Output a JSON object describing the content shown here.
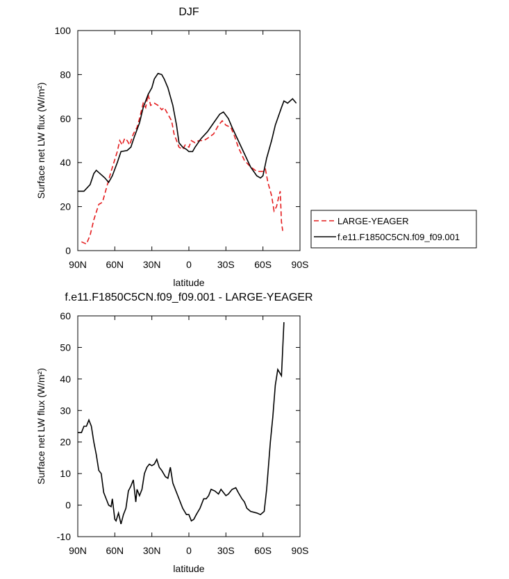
{
  "chart_data": [
    {
      "type": "line",
      "title": "DJF",
      "xlabel": "latitude",
      "ylabel": "Surface net LW flux (W/m²)",
      "xlim": [
        90,
        -90
      ],
      "ylim": [
        0,
        100
      ],
      "xticks": [
        {
          "value": 90,
          "label": "90N"
        },
        {
          "value": 60,
          "label": "60N"
        },
        {
          "value": 30,
          "label": "30N"
        },
        0,
        {
          "value": -30,
          "label": "30S"
        },
        {
          "value": -60,
          "label": "60S"
        },
        {
          "value": -90,
          "label": "90S"
        }
      ],
      "yticks": [
        0,
        20,
        40,
        60,
        80,
        100
      ],
      "legend": "right",
      "series": [
        {
          "name": "LARGE-YEAGER",
          "color": "#e41a1c",
          "dashed": true,
          "x": [
            87,
            83,
            80,
            77,
            73,
            70,
            67,
            63,
            58,
            56,
            54,
            52,
            50,
            48,
            45,
            42,
            40,
            37,
            35,
            33,
            31,
            28,
            25,
            22,
            20,
            17,
            14,
            12,
            10,
            8,
            5,
            3,
            0,
            -2,
            -5,
            -8,
            -12,
            -15,
            -20,
            -24,
            -27,
            -30,
            -34,
            -37,
            -40,
            -45,
            -50,
            -55,
            -60,
            -62,
            -64,
            -67,
            -69,
            -71,
            -73,
            -74,
            -75,
            -76
          ],
          "values": [
            4,
            3,
            7,
            14,
            21,
            22,
            28,
            36,
            45,
            50,
            48,
            51,
            50,
            48,
            53,
            56,
            60,
            67,
            65,
            71,
            66,
            67,
            66,
            64,
            65,
            62,
            59,
            53,
            50,
            47,
            46,
            48,
            47,
            50,
            49,
            50,
            50,
            51,
            53,
            57,
            59,
            57,
            56,
            52,
            47,
            41,
            38,
            36,
            36,
            37,
            31,
            25,
            18,
            20,
            25,
            27,
            13,
            9
          ]
        },
        {
          "name": "f.e11.F1850C5CN.f09_f09.001",
          "color": "#000000",
          "dashed": false,
          "x": [
            90,
            85,
            80,
            77,
            75,
            72,
            68,
            65,
            62,
            58,
            55,
            50,
            47,
            44,
            40,
            37,
            33,
            30,
            28,
            25,
            22,
            20,
            17,
            13,
            10,
            8,
            5,
            2,
            0,
            -3,
            -5,
            -10,
            -15,
            -20,
            -25,
            -28,
            -32,
            -35,
            -40,
            -45,
            -50,
            -55,
            -58,
            -60,
            -63,
            -67,
            -70,
            -75,
            -77,
            -80,
            -84,
            -87
          ],
          "values": [
            27,
            27,
            30,
            35,
            36.5,
            35,
            33,
            31,
            34,
            40,
            45,
            45.5,
            47,
            52,
            58,
            65,
            71,
            74,
            78,
            80.5,
            80,
            78,
            74,
            66,
            57,
            49,
            47,
            46,
            45,
            45,
            47,
            51,
            54,
            58,
            62,
            63,
            60,
            56,
            50,
            44,
            38,
            34,
            33,
            34,
            42,
            50,
            57,
            65,
            68,
            67,
            69,
            67
          ]
        }
      ]
    },
    {
      "type": "line",
      "title": "f.e11.F1850C5CN.f09_f09.001 - LARGE-YEAGER",
      "xlabel": "latitude",
      "ylabel": "Surface net LW flux (W/m²)",
      "xlim": [
        90,
        -90
      ],
      "ylim": [
        -10,
        60
      ],
      "xticks": [
        {
          "value": 90,
          "label": "90N"
        },
        {
          "value": 60,
          "label": "60N"
        },
        {
          "value": 30,
          "label": "30N"
        },
        0,
        {
          "value": -30,
          "label": "30S"
        },
        {
          "value": -60,
          "label": "60S"
        },
        {
          "value": -90,
          "label": "90S"
        }
      ],
      "yticks": [
        -10,
        0,
        10,
        20,
        30,
        40,
        50,
        60
      ],
      "color": "#000000",
      "x": [
        90,
        87,
        85,
        83,
        81,
        79,
        77,
        75,
        73,
        71,
        69,
        67,
        65,
        63,
        62,
        60,
        59,
        57,
        55,
        53,
        51,
        49,
        47,
        45,
        43,
        42,
        40,
        38,
        36,
        34,
        32,
        30,
        28,
        26,
        24,
        22,
        19,
        17,
        15,
        13,
        10,
        7,
        5,
        2,
        0,
        -2,
        -4,
        -6,
        -9,
        -12,
        -14,
        -16,
        -18,
        -21,
        -24,
        -26,
        -28,
        -30,
        -32,
        -35,
        -38,
        -40,
        -43,
        -45,
        -47,
        -50,
        -55,
        -58,
        -61,
        -63,
        -66,
        -68,
        -70,
        -72,
        -75,
        -77
      ],
      "values": [
        23,
        23,
        25,
        25,
        27,
        25,
        20,
        16,
        11,
        10,
        4,
        2,
        0,
        -0.5,
        2,
        -4.5,
        -5,
        -2.5,
        -6,
        -3,
        -1,
        4.5,
        6,
        8,
        1,
        5,
        3,
        5,
        10,
        12,
        13,
        12.5,
        13,
        14.5,
        12,
        11,
        9,
        8.5,
        12,
        7,
        4,
        1,
        -1,
        -3,
        -3,
        -5,
        -4.5,
        -3,
        -1,
        2,
        2,
        3,
        5,
        4.5,
        3.5,
        5,
        4,
        3,
        3.5,
        5,
        5.5,
        4,
        2,
        1,
        -1,
        -2,
        -2.5,
        -3,
        -2,
        5,
        20,
        28,
        38,
        43,
        41,
        58
      ]
    }
  ]
}
